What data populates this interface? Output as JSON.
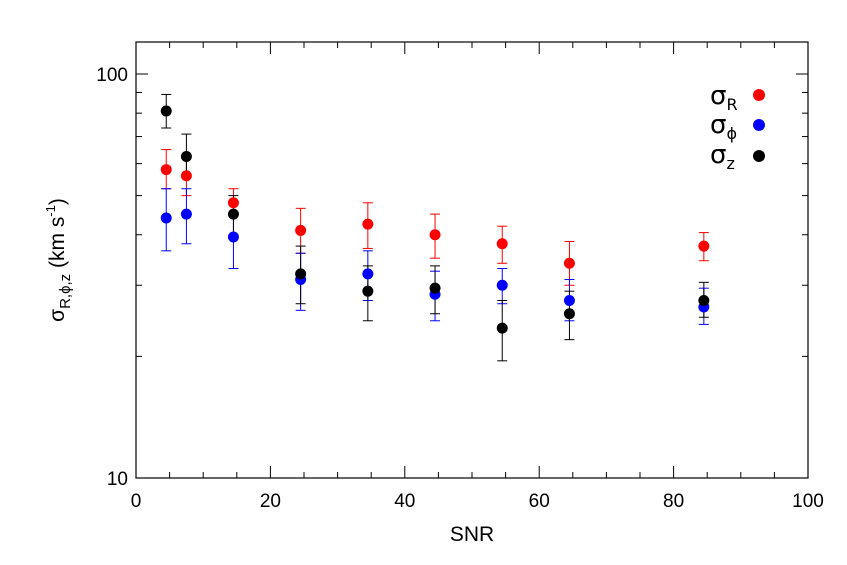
{
  "chart_data": {
    "type": "scatter",
    "title": "",
    "xlabel": "SNR",
    "ylabel": {
      "symbol": "σ",
      "subscript": "R,ϕ,z",
      "unit_open": " (km s",
      "unit_sup": "-1",
      "unit_close": ")"
    },
    "x_scale": "linear",
    "y_scale": "log",
    "xlim": [
      0,
      100
    ],
    "ylim": [
      10,
      120
    ],
    "x_ticks": [
      0,
      20,
      40,
      60,
      80,
      100
    ],
    "x_tick_labels": [
      "0",
      "20",
      "40",
      "60",
      "80",
      "100"
    ],
    "y_ticks_labeled": [
      10,
      100
    ],
    "y_tick_labels": [
      "10",
      "100"
    ],
    "grid": false,
    "legend_position": "top-right",
    "series": [
      {
        "name": "σ_R",
        "symbol": "σ",
        "subscript": "R",
        "color": "#ff0000",
        "x": [
          4.5,
          7.5,
          14.5,
          24.5,
          34.5,
          44.5,
          54.5,
          64.5,
          84.5
        ],
        "y": [
          58,
          56,
          48,
          41,
          42.5,
          40,
          38,
          34,
          37.5
        ],
        "err_low": [
          52,
          50,
          45,
          36,
          37,
          35,
          34,
          30,
          34.5
        ],
        "err_high": [
          65,
          63,
          52,
          46.5,
          48,
          45,
          42,
          38.5,
          40.5
        ]
      },
      {
        "name": "σ_ϕ",
        "symbol": "σ",
        "subscript": "ϕ",
        "color": "#0000ff",
        "x": [
          4.5,
          7.5,
          14.5,
          24.5,
          34.5,
          44.5,
          54.5,
          64.5,
          84.5
        ],
        "y": [
          44,
          45,
          39.5,
          31,
          32,
          28.5,
          30,
          27.5,
          26.5
        ],
        "err_low": [
          36.5,
          38,
          33,
          26,
          27.5,
          24.5,
          27,
          24.5,
          24
        ],
        "err_high": [
          52,
          52,
          45,
          36,
          36.5,
          32.5,
          33,
          31,
          29.5
        ]
      },
      {
        "name": "σ_z",
        "symbol": "σ",
        "subscript": "z",
        "color": "#000000",
        "x": [
          4.5,
          7.5,
          14.5,
          24.5,
          34.5,
          44.5,
          54.5,
          64.5,
          84.5
        ],
        "y": [
          81,
          62.5,
          45,
          32,
          29,
          29.5,
          23.5,
          25.5,
          27.5
        ],
        "err_low": [
          73.5,
          56,
          40,
          27,
          24.5,
          25.5,
          19.5,
          22,
          25
        ],
        "err_high": [
          89,
          71,
          50,
          37.5,
          33.5,
          33.5,
          27.5,
          29,
          30.5
        ]
      }
    ]
  }
}
